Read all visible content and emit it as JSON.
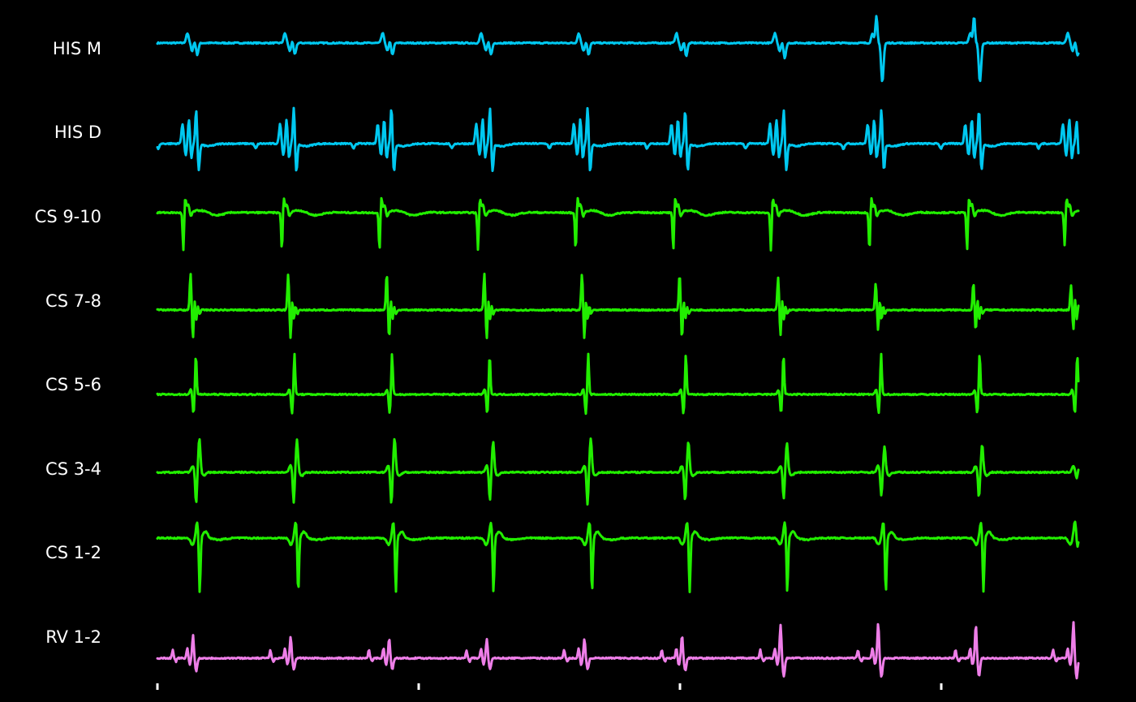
{
  "chart_data": {
    "type": "line",
    "title": "",
    "xlabel": "",
    "ylabel": "",
    "background": "#000000",
    "beats": 10,
    "x_tick_count": 4,
    "channels": [
      {
        "label": "HIS M",
        "color": "#00c8f0",
        "morphology": "his_m",
        "amplitude": [
          0.55,
          0.55,
          0.55,
          0.55,
          0.55,
          0.6,
          0.7,
          1.05,
          1.05,
          0.6
        ],
        "beat_times": [
          0.036,
          0.142,
          0.248,
          0.355,
          0.461,
          0.567,
          0.674,
          0.78,
          0.886,
          0.992
        ]
      },
      {
        "label": "HIS D",
        "color": "#00c8f0",
        "morphology": "his_d",
        "amplitude": [
          0.9,
          0.95,
          0.95,
          0.95,
          0.95,
          0.9,
          0.9,
          0.9,
          0.9,
          0.6
        ],
        "beat_times": [
          0.036,
          0.142,
          0.248,
          0.355,
          0.461,
          0.567,
          0.674,
          0.78,
          0.886,
          0.992
        ]
      },
      {
        "label": "CS 9-10",
        "color": "#22ee00",
        "morphology": "cs_910",
        "amplitude": [
          1.0,
          1.0,
          1.0,
          1.0,
          1.0,
          1.0,
          1.0,
          1.0,
          1.0,
          0.9
        ],
        "beat_times": [
          0.03,
          0.137,
          0.243,
          0.35,
          0.456,
          0.562,
          0.668,
          0.775,
          0.881,
          0.987
        ]
      },
      {
        "label": "CS 7-8",
        "color": "#22ee00",
        "morphology": "cs_78",
        "amplitude": [
          1.0,
          1.0,
          1.0,
          1.0,
          1.0,
          1.0,
          0.9,
          0.75,
          0.75,
          0.7
        ],
        "beat_times": [
          0.036,
          0.142,
          0.249,
          0.355,
          0.461,
          0.567,
          0.674,
          0.78,
          0.886,
          0.992
        ]
      },
      {
        "label": "CS 5-6",
        "color": "#22ee00",
        "morphology": "cs_56",
        "amplitude": [
          1.0,
          1.0,
          1.0,
          1.0,
          1.0,
          1.0,
          1.0,
          1.0,
          1.0,
          1.0
        ],
        "beat_times": [
          0.04,
          0.147,
          0.253,
          0.359,
          0.466,
          0.572,
          0.678,
          0.784,
          0.891,
          0.997
        ]
      },
      {
        "label": "CS 3-4",
        "color": "#22ee00",
        "morphology": "cs_34",
        "amplitude": [
          1.0,
          0.95,
          1.0,
          0.9,
          1.0,
          0.9,
          0.85,
          0.75,
          0.8,
          0.2
        ],
        "beat_times": [
          0.042,
          0.148,
          0.254,
          0.361,
          0.467,
          0.573,
          0.68,
          0.786,
          0.892,
          0.998
        ]
      },
      {
        "label": "CS 1-2",
        "color": "#22ee00",
        "morphology": "cs_12",
        "amplitude": [
          1.0,
          1.0,
          1.0,
          1.0,
          1.0,
          1.0,
          1.0,
          1.0,
          1.0,
          0.2
        ],
        "beat_times": [
          0.045,
          0.152,
          0.258,
          0.364,
          0.471,
          0.577,
          0.683,
          0.79,
          0.896,
          0.998
        ]
      },
      {
        "label": "RV 1-2",
        "color": "#ee7ee8",
        "morphology": "rv_12",
        "amplitude": [
          0.65,
          0.6,
          0.55,
          0.55,
          0.55,
          0.65,
          0.95,
          1.0,
          0.95,
          1.0
        ],
        "beat_times": [
          0.036,
          0.142,
          0.249,
          0.355,
          0.461,
          0.567,
          0.674,
          0.78,
          0.886,
          0.992
        ]
      }
    ]
  }
}
